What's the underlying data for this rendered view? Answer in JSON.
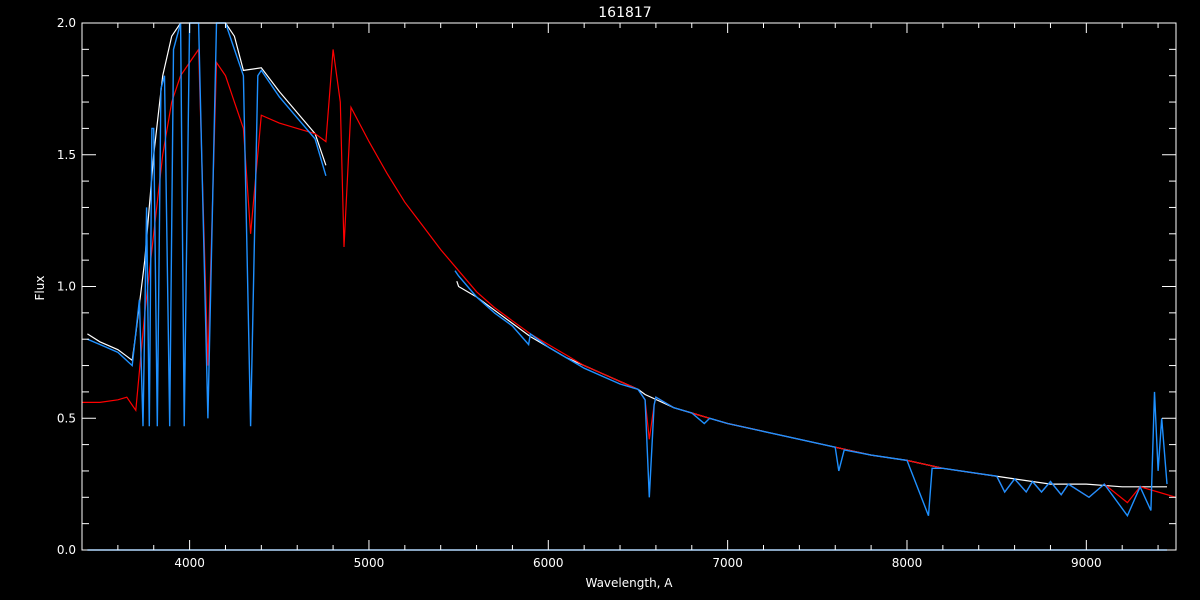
{
  "chart_data": {
    "type": "line",
    "title": "161817",
    "xlabel": "Wavelength, A",
    "ylabel": "Flux",
    "xlim": [
      3400,
      9500
    ],
    "ylim": [
      0.0,
      2.0
    ],
    "grid": false,
    "background": "#000000",
    "axis_color": "#ffffff",
    "x_ticks": [
      4000,
      5000,
      6000,
      7000,
      8000,
      9000
    ],
    "x_tick_labels": [
      "4000",
      "5000",
      "6000",
      "7000",
      "8000",
      "9000"
    ],
    "y_ticks": [
      0.0,
      0.5,
      1.0,
      1.5,
      2.0
    ],
    "y_tick_labels": [
      "0.0",
      "0.5",
      "1.0",
      "1.5",
      "2.0"
    ],
    "series": [
      {
        "color": "#ffffff",
        "segments": [
          [
            [
              3430,
              0.82
            ],
            [
              3500,
              0.79
            ],
            [
              3600,
              0.76
            ],
            [
              3680,
              0.72
            ],
            [
              3700,
              0.82
            ],
            [
              3750,
              1.1
            ],
            [
              3800,
              1.5
            ],
            [
              3850,
              1.8
            ],
            [
              3900,
              1.95
            ],
            [
              3950,
              2.0
            ],
            [
              4000,
              2.0
            ],
            [
              4100,
              2.0
            ],
            [
              4200,
              2.0
            ],
            [
              4250,
              1.95
            ],
            [
              4300,
              1.82
            ],
            [
              4400,
              1.83
            ],
            [
              4500,
              1.74
            ],
            [
              4600,
              1.66
            ],
            [
              4700,
              1.58
            ],
            [
              4760,
              1.46
            ]
          ],
          [
            [
              5490,
              1.02
            ],
            [
              5500,
              1.0
            ],
            [
              5600,
              0.96
            ],
            [
              5700,
              0.91
            ],
            [
              5800,
              0.86
            ],
            [
              5900,
              0.81
            ],
            [
              6000,
              0.77
            ],
            [
              6100,
              0.73
            ],
            [
              6200,
              0.7
            ],
            [
              6300,
              0.67
            ],
            [
              6400,
              0.64
            ],
            [
              6500,
              0.61
            ],
            [
              6540,
              0.59
            ],
            [
              6700,
              0.54
            ],
            [
              6800,
              0.52
            ],
            [
              6900,
              0.5
            ],
            [
              7000,
              0.48
            ],
            [
              7200,
              0.45
            ],
            [
              7400,
              0.42
            ],
            [
              7600,
              0.39
            ],
            [
              7800,
              0.36
            ],
            [
              8000,
              0.34
            ],
            [
              8200,
              0.31
            ],
            [
              8400,
              0.29
            ],
            [
              8600,
              0.27
            ],
            [
              8800,
              0.25
            ],
            [
              9000,
              0.25
            ],
            [
              9200,
              0.24
            ],
            [
              9400,
              0.24
            ],
            [
              9450,
              0.24
            ]
          ]
        ]
      },
      {
        "color": "#ff0000",
        "segments": [
          [
            [
              3400,
              0.56
            ],
            [
              3500,
              0.56
            ],
            [
              3600,
              0.57
            ],
            [
              3650,
              0.58
            ],
            [
              3680,
              0.55
            ],
            [
              3700,
              0.53
            ],
            [
              3750,
              0.9
            ],
            [
              3800,
              1.2
            ],
            [
              3850,
              1.5
            ],
            [
              3900,
              1.7
            ],
            [
              3950,
              1.8
            ],
            [
              4000,
              1.85
            ],
            [
              4050,
              1.9
            ],
            [
              4102,
              0.7
            ],
            [
              4150,
              1.85
            ],
            [
              4200,
              1.8
            ],
            [
              4250,
              1.7
            ],
            [
              4300,
              1.6
            ],
            [
              4340,
              1.2
            ],
            [
              4400,
              1.65
            ],
            [
              4500,
              1.62
            ],
            [
              4600,
              1.6
            ],
            [
              4700,
              1.58
            ],
            [
              4760,
              1.55
            ],
            [
              4800,
              1.9
            ],
            [
              4840,
              1.7
            ],
            [
              4861,
              1.15
            ],
            [
              4900,
              1.68
            ],
            [
              5000,
              1.55
            ],
            [
              5100,
              1.43
            ],
            [
              5200,
              1.32
            ],
            [
              5300,
              1.23
            ],
            [
              5400,
              1.14
            ],
            [
              5500,
              1.06
            ],
            [
              5600,
              0.98
            ],
            [
              5700,
              0.92
            ],
            [
              5800,
              0.87
            ],
            [
              5900,
              0.82
            ],
            [
              6000,
              0.78
            ],
            [
              6100,
              0.74
            ],
            [
              6200,
              0.7
            ],
            [
              6300,
              0.67
            ],
            [
              6400,
              0.64
            ],
            [
              6500,
              0.61
            ],
            [
              6540,
              0.57
            ],
            [
              6563,
              0.42
            ],
            [
              6590,
              0.55
            ],
            [
              6600,
              0.58
            ],
            [
              6700,
              0.54
            ],
            [
              6800,
              0.52
            ],
            [
              6900,
              0.5
            ],
            [
              7000,
              0.48
            ],
            [
              7200,
              0.45
            ],
            [
              7400,
              0.42
            ],
            [
              7600,
              0.39
            ],
            [
              7800,
              0.36
            ],
            [
              8000,
              0.34
            ],
            [
              8200,
              0.31
            ],
            [
              8400,
              0.29
            ],
            [
              8500,
              0.28
            ],
            [
              8545,
              0.22
            ],
            [
              8600,
              0.27
            ],
            [
              8665,
              0.22
            ],
            [
              8700,
              0.26
            ],
            [
              8750,
              0.22
            ],
            [
              8800,
              0.26
            ],
            [
              8860,
              0.21
            ],
            [
              8900,
              0.25
            ],
            [
              9015,
              0.2
            ],
            [
              9100,
              0.25
            ],
            [
              9229,
              0.18
            ],
            [
              9300,
              0.24
            ],
            [
              9400,
              0.22
            ],
            [
              9500,
              0.2
            ]
          ]
        ]
      },
      {
        "color": "#1e90ff",
        "segments": [
          [
            [
              3430,
              0.8
            ],
            [
              3500,
              0.78
            ],
            [
              3600,
              0.75
            ],
            [
              3680,
              0.7
            ],
            [
              3720,
              0.95
            ],
            [
              3740,
              0.47
            ],
            [
              3760,
              1.3
            ],
            [
              3775,
              0.47
            ],
            [
              3790,
              1.6
            ],
            [
              3800,
              1.6
            ],
            [
              3820,
              0.47
            ],
            [
              3840,
              1.75
            ],
            [
              3860,
              1.8
            ],
            [
              3889,
              0.47
            ],
            [
              3910,
              1.9
            ],
            [
              3950,
              2.0
            ],
            [
              3970,
              0.47
            ],
            [
              4000,
              2.0
            ],
            [
              4050,
              2.0
            ],
            [
              4102,
              0.5
            ],
            [
              4150,
              2.0
            ],
            [
              4200,
              2.0
            ],
            [
              4250,
              1.9
            ],
            [
              4300,
              1.8
            ],
            [
              4340,
              0.47
            ],
            [
              4380,
              1.8
            ],
            [
              4400,
              1.82
            ],
            [
              4500,
              1.72
            ],
            [
              4600,
              1.64
            ],
            [
              4700,
              1.56
            ],
            [
              4760,
              1.42
            ]
          ],
          [
            [
              5480,
              1.06
            ],
            [
              5500,
              1.04
            ],
            [
              5600,
              0.96
            ],
            [
              5700,
              0.9
            ],
            [
              5800,
              0.85
            ],
            [
              5890,
              0.78
            ],
            [
              5900,
              0.82
            ],
            [
              6000,
              0.77
            ],
            [
              6100,
              0.73
            ],
            [
              6200,
              0.69
            ],
            [
              6300,
              0.66
            ],
            [
              6400,
              0.63
            ],
            [
              6500,
              0.61
            ],
            [
              6540,
              0.57
            ],
            [
              6563,
              0.2
            ],
            [
              6590,
              0.55
            ],
            [
              6600,
              0.58
            ],
            [
              6700,
              0.54
            ],
            [
              6800,
              0.52
            ],
            [
              6870,
              0.48
            ],
            [
              6900,
              0.5
            ],
            [
              7000,
              0.48
            ],
            [
              7200,
              0.45
            ],
            [
              7400,
              0.42
            ],
            [
              7600,
              0.39
            ],
            [
              7620,
              0.3
            ],
            [
              7650,
              0.38
            ],
            [
              7800,
              0.36
            ],
            [
              8000,
              0.34
            ],
            [
              8120,
              0.13
            ],
            [
              8140,
              0.31
            ],
            [
              8200,
              0.31
            ],
            [
              8400,
              0.29
            ],
            [
              8500,
              0.28
            ],
            [
              8545,
              0.22
            ],
            [
              8600,
              0.27
            ],
            [
              8665,
              0.22
            ],
            [
              8700,
              0.26
            ],
            [
              8750,
              0.22
            ],
            [
              8800,
              0.26
            ],
            [
              8860,
              0.21
            ],
            [
              8900,
              0.25
            ],
            [
              9015,
              0.2
            ],
            [
              9100,
              0.25
            ],
            [
              9229,
              0.13
            ],
            [
              9300,
              0.24
            ],
            [
              9360,
              0.15
            ],
            [
              9380,
              0.6
            ],
            [
              9400,
              0.3
            ],
            [
              9420,
              0.5
            ],
            [
              9450,
              0.25
            ]
          ],
          [
            [
              3430,
              0.0
            ],
            [
              9450,
              0.0
            ]
          ]
        ]
      }
    ]
  }
}
